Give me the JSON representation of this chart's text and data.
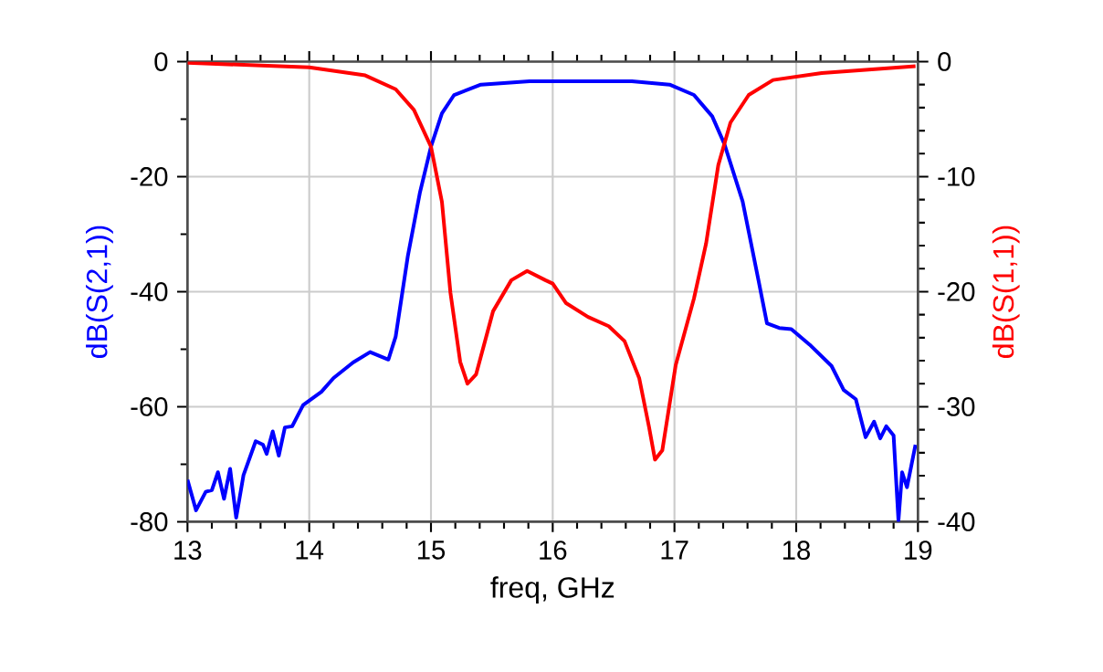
{
  "chart_data": {
    "type": "line",
    "xlabel": "freq, GHz",
    "ylabel": "dB(S(2,1))",
    "y2label": "dB(S(1,1))",
    "xlim": [
      13,
      19
    ],
    "xticks": [
      13,
      14,
      15,
      16,
      17,
      18,
      19
    ],
    "ylim": [
      -80,
      0
    ],
    "yticks": [
      -80,
      -60,
      -40,
      -20,
      0
    ],
    "y2lim": [
      -40,
      0
    ],
    "y2ticks": [
      -40,
      -30,
      -20,
      -10,
      0
    ],
    "grid": true,
    "marker": "none",
    "line_style": "solid",
    "series": [
      {
        "color": "#0000ff",
        "axis": "y",
        "x": [
          13.0,
          13.07,
          13.15,
          13.2,
          13.25,
          13.3,
          13.35,
          13.4,
          13.46,
          13.56,
          13.62,
          13.65,
          13.7,
          13.75,
          13.8,
          13.86,
          13.95,
          14.1,
          14.2,
          14.36,
          14.5,
          14.65,
          14.71,
          14.81,
          14.91,
          15.0,
          15.09,
          15.19,
          15.41,
          15.81,
          16.65,
          16.96,
          17.16,
          17.31,
          17.41,
          17.56,
          17.69,
          17.76,
          17.86,
          17.96,
          18.11,
          18.29,
          18.39,
          18.49,
          18.57,
          18.64,
          18.69,
          18.74,
          18.8,
          18.84,
          18.87,
          18.91,
          18.95,
          18.98
        ],
        "values": [
          -72.7,
          -78,
          -74.8,
          -74.5,
          -71.4,
          -76,
          -70.8,
          -79.3,
          -71.9,
          -66,
          -66.6,
          -68.2,
          -64.3,
          -68.5,
          -63.6,
          -63.4,
          -59.7,
          -57.4,
          -55,
          -52.3,
          -50.5,
          -51.8,
          -47.8,
          -33.8,
          -22.7,
          -14.8,
          -9,
          -5.8,
          -4,
          -3.4,
          -3.4,
          -4,
          -5.8,
          -9.5,
          -14.3,
          -24.3,
          -38,
          -45.5,
          -46.3,
          -46.5,
          -49.2,
          -52.9,
          -57.1,
          -58.7,
          -65.3,
          -62.6,
          -65.5,
          -63.4,
          -65,
          -79.8,
          -71.4,
          -74,
          -69.8,
          -66.6
        ]
      },
      {
        "color": "#ff0000",
        "axis": "y2",
        "x": [
          13.0,
          14.0,
          14.46,
          14.71,
          14.86,
          15.0,
          15.09,
          15.16,
          15.24,
          15.3,
          15.37,
          15.51,
          15.66,
          15.79,
          15.94,
          16.0,
          16.11,
          16.29,
          16.46,
          16.59,
          16.71,
          16.79,
          16.84,
          16.9,
          17.01,
          17.16,
          17.26,
          17.36,
          17.46,
          17.61,
          17.81,
          18.21,
          18.98
        ],
        "values": [
          -0.1,
          -0.5,
          -1.2,
          -2.4,
          -4.2,
          -7.4,
          -12.2,
          -20.1,
          -26.1,
          -28,
          -27.2,
          -21.7,
          -19,
          -18.2,
          -19,
          -19.3,
          -21,
          -22.2,
          -23,
          -24.3,
          -27.5,
          -31.7,
          -34.6,
          -33.8,
          -26.4,
          -20.6,
          -15.8,
          -9,
          -5.3,
          -2.9,
          -1.6,
          -1,
          -0.4
        ]
      }
    ]
  }
}
